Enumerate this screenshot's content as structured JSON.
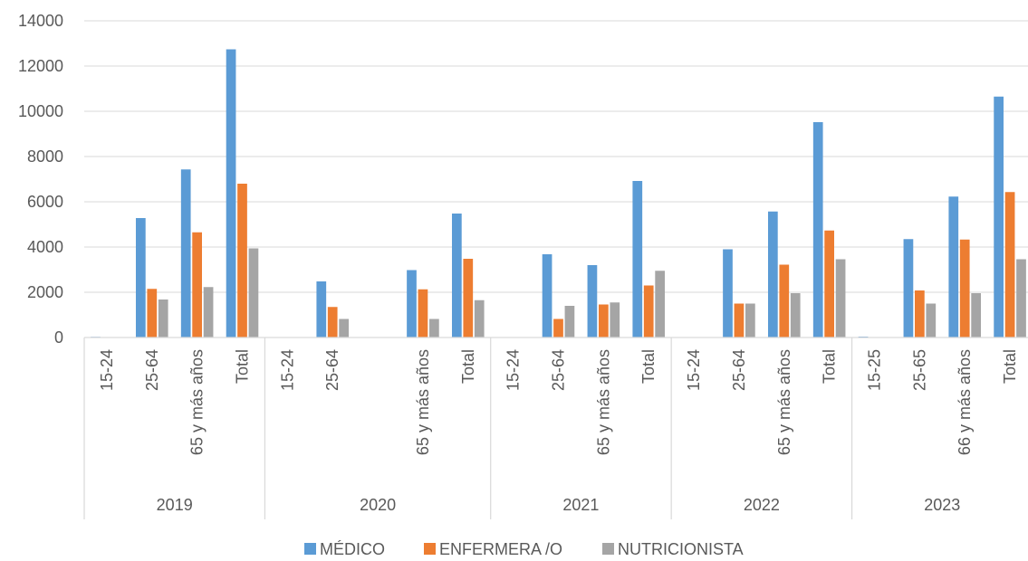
{
  "chart_data": {
    "type": "bar",
    "ylim": [
      0,
      14000
    ],
    "yticks": [
      "0",
      "2000",
      "4000",
      "6000",
      "8000",
      "10000",
      "12000",
      "14000"
    ],
    "grid": true,
    "legend_position": "bottom",
    "groups": [
      {
        "label": "2019",
        "categories": [
          "15-24",
          "25-64",
          "65 y más años",
          "Total"
        ]
      },
      {
        "label": "2020",
        "categories": [
          "15-24",
          "25-64",
          "",
          "65 y más años",
          "Total"
        ]
      },
      {
        "label": "2021",
        "categories": [
          "15-24",
          "25-64",
          "65 y más años",
          "Total"
        ]
      },
      {
        "label": "2022",
        "categories": [
          "15-24",
          "25-64",
          "65 y más años",
          "Total"
        ]
      },
      {
        "label": "2023",
        "categories": [
          "15-25",
          "25-65",
          "66 y más años",
          "Total"
        ]
      }
    ],
    "series": [
      {
        "name": "MÉDICO",
        "color": "#5B9BD5",
        "values": [
          30,
          5280,
          7430,
          12740,
          20,
          2480,
          0,
          2980,
          5480,
          20,
          3680,
          3200,
          6920,
          0,
          3900,
          5570,
          9520,
          40,
          4350,
          6230,
          10650
        ]
      },
      {
        "name": "ENFERMERA /O",
        "color": "#ED7D31",
        "values": [
          0,
          2150,
          4650,
          6800,
          0,
          1350,
          0,
          2130,
          3480,
          0,
          820,
          1460,
          2300,
          0,
          1500,
          3220,
          4730,
          0,
          2080,
          4330,
          6430
        ]
      },
      {
        "name": "NUTRICIONISTA",
        "color": "#A5A5A5",
        "values": [
          0,
          1680,
          2230,
          3940,
          0,
          820,
          0,
          820,
          1650,
          0,
          1400,
          1550,
          2950,
          0,
          1500,
          1960,
          3460,
          0,
          1500,
          1960,
          3460
        ]
      }
    ]
  }
}
